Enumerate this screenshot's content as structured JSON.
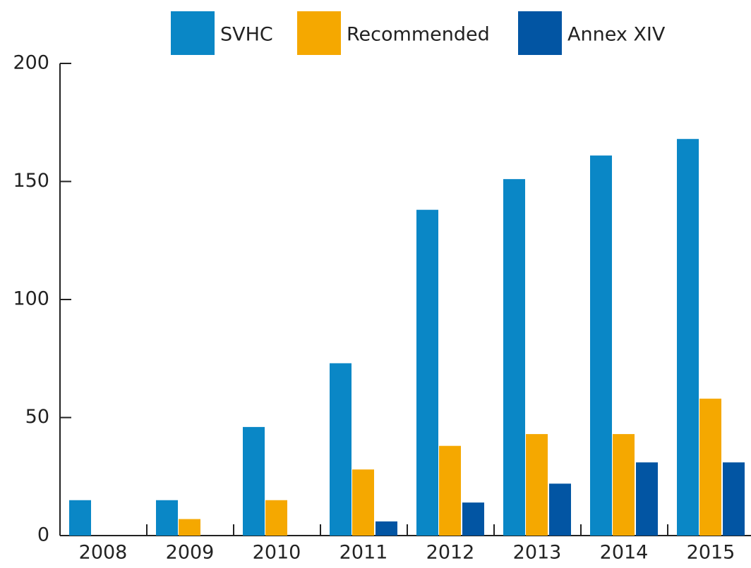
{
  "chart_data": {
    "type": "bar",
    "categories": [
      "2008",
      "2009",
      "2010",
      "2011",
      "2012",
      "2013",
      "2014",
      "2015"
    ],
    "series": [
      {
        "name": "SVHC",
        "color": "#0a87c6",
        "values": [
          15,
          15,
          46,
          73,
          138,
          151,
          161,
          168
        ]
      },
      {
        "name": "Recommended",
        "color": "#f5a800",
        "values": [
          0,
          7,
          15,
          28,
          38,
          43,
          43,
          58
        ]
      },
      {
        "name": "Annex XIV",
        "color": "#0255a3",
        "values": [
          0,
          0,
          0,
          6,
          14,
          22,
          31,
          31
        ]
      }
    ],
    "ylim": [
      0,
      200
    ],
    "yticks": [
      0,
      50,
      100,
      150,
      200
    ],
    "grid": false,
    "legend": "top"
  }
}
